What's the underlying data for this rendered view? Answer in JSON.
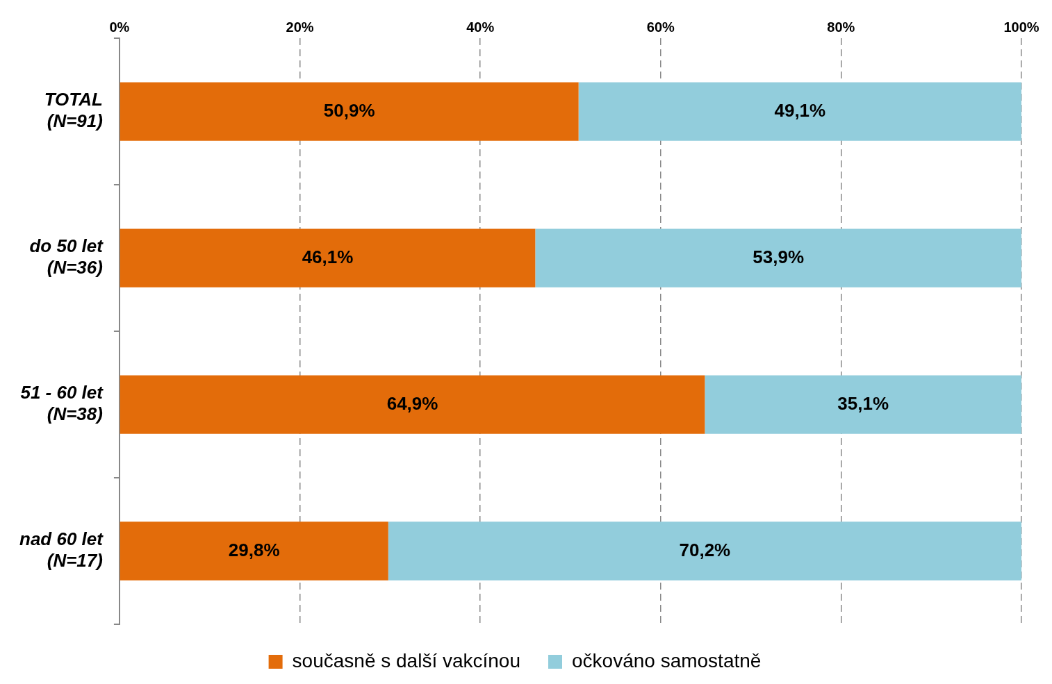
{
  "chart_data": {
    "type": "bar",
    "orientation": "horizontal",
    "stacked": true,
    "categories": [
      "TOTAL\n(N=91)",
      "do 50 let\n(N=36)",
      "51 - 60 let\n(N=38)",
      "nad 60 let\n(N=17)"
    ],
    "series": [
      {
        "name": "současně s další vakcínou",
        "color": "#e36c0a",
        "values": [
          50.9,
          46.1,
          64.9,
          29.8
        ],
        "value_labels": [
          "50,9%",
          "46,1%",
          "64,9%",
          "29,8%"
        ]
      },
      {
        "name": "očkováno samostatně",
        "color": "#92cddc",
        "values": [
          49.1,
          53.9,
          35.1,
          70.2
        ],
        "value_labels": [
          "49,1%",
          "53,9%",
          "35,1%",
          "70,2%"
        ]
      }
    ],
    "xlim": [
      0,
      100
    ],
    "xticks": [
      {
        "value": 0,
        "label": "0%"
      },
      {
        "value": 20,
        "label": "20%"
      },
      {
        "value": 40,
        "label": "40%"
      },
      {
        "value": 60,
        "label": "60%"
      },
      {
        "value": 80,
        "label": "80%"
      },
      {
        "value": 100,
        "label": "100%"
      }
    ],
    "grid": "x",
    "legend": "bottom"
  }
}
